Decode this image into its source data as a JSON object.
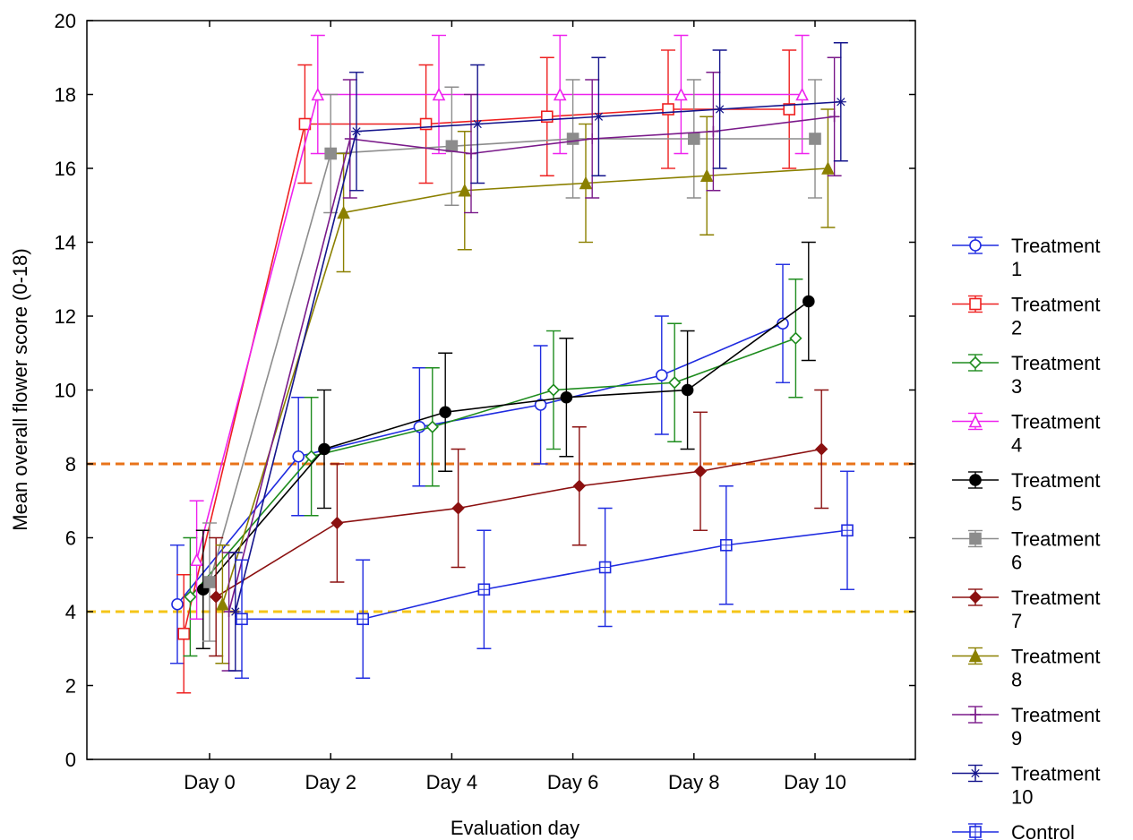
{
  "chart_data": {
    "type": "line",
    "title": "",
    "xlabel": "Evaluation day",
    "ylabel": "Mean overall flower score (0-18)",
    "ylim": [
      0,
      20
    ],
    "yticks": [
      0,
      2,
      4,
      6,
      8,
      10,
      12,
      14,
      16,
      18,
      20
    ],
    "categories": [
      "Day 0",
      "Day 2",
      "Day 4",
      "Day 6",
      "Day 8",
      "Day 10"
    ],
    "grid": false,
    "legend_position": "right",
    "reference_lines": [
      {
        "y": 8,
        "color": "#e8731a"
      },
      {
        "y": 4,
        "color": "#f5c518"
      }
    ],
    "series": [
      {
        "name": "Treatment\n1",
        "color": "#1f2be0",
        "marker": "circle-open",
        "values": [
          4.2,
          8.2,
          9.0,
          9.6,
          10.4,
          11.8
        ],
        "error": [
          1.6,
          1.6,
          1.6,
          1.6,
          1.6,
          1.6
        ]
      },
      {
        "name": "Treatment\n2",
        "color": "#ee2020",
        "marker": "square-open",
        "values": [
          3.4,
          17.2,
          17.2,
          17.4,
          17.6,
          17.6
        ],
        "error": [
          1.6,
          1.6,
          1.6,
          1.6,
          1.6,
          1.6
        ]
      },
      {
        "name": "Treatment\n3",
        "color": "#1e8c1e",
        "marker": "diamond-open",
        "values": [
          4.4,
          8.2,
          9.0,
          10.0,
          10.2,
          11.4
        ],
        "error": [
          1.6,
          1.6,
          1.6,
          1.6,
          1.6,
          1.6
        ]
      },
      {
        "name": "Treatment\n4",
        "color": "#ee22ee",
        "marker": "triangle-open",
        "values": [
          5.4,
          18.0,
          18.0,
          18.0,
          18.0,
          18.0
        ],
        "error": [
          1.6,
          1.6,
          1.6,
          1.6,
          1.6,
          1.6
        ]
      },
      {
        "name": "Treatment\n5",
        "color": "#000000",
        "marker": "circle-filled",
        "values": [
          4.6,
          8.4,
          9.4,
          9.8,
          10.0,
          12.4
        ],
        "error": [
          1.6,
          1.6,
          1.6,
          1.6,
          1.6,
          1.6
        ]
      },
      {
        "name": "Treatment\n6",
        "color": "#8c8c8c",
        "marker": "square-filled",
        "values": [
          4.8,
          16.4,
          16.6,
          16.8,
          16.8,
          16.8
        ],
        "error": [
          1.6,
          1.6,
          1.6,
          1.6,
          1.6,
          1.6
        ]
      },
      {
        "name": "Treatment\n7",
        "color": "#8b1010",
        "marker": "diamond-filled",
        "values": [
          4.4,
          6.4,
          6.8,
          7.4,
          7.8,
          8.4
        ],
        "error": [
          1.6,
          1.6,
          1.6,
          1.6,
          1.6,
          1.6
        ]
      },
      {
        "name": "Treatment\n8",
        "color": "#8b8000",
        "marker": "triangle-filled",
        "values": [
          4.2,
          14.8,
          15.4,
          15.6,
          15.8,
          16.0
        ],
        "error": [
          1.6,
          1.6,
          1.6,
          1.6,
          1.6,
          1.6
        ]
      },
      {
        "name": "Treatment\n9",
        "color": "#7a1a8a",
        "marker": "plus",
        "values": [
          4.0,
          16.8,
          16.4,
          16.8,
          17.0,
          17.4
        ],
        "error": [
          1.6,
          1.6,
          1.6,
          1.6,
          1.6,
          1.6
        ]
      },
      {
        "name": "Treatment\n10",
        "color": "#14148c",
        "marker": "star",
        "values": [
          4.0,
          17.0,
          17.2,
          17.4,
          17.6,
          17.8
        ],
        "error": [
          1.6,
          1.6,
          1.6,
          1.6,
          1.6,
          1.6
        ]
      },
      {
        "name": "Control",
        "color": "#1f2be0",
        "marker": "square-plus",
        "values": [
          3.8,
          3.8,
          4.6,
          5.2,
          5.8,
          6.2
        ],
        "error": [
          1.6,
          1.6,
          1.6,
          1.6,
          1.6,
          1.6
        ]
      }
    ]
  }
}
